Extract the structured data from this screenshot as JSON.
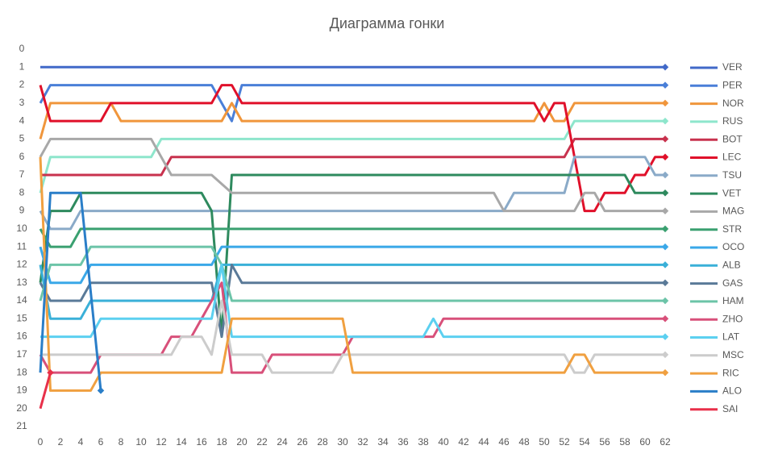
{
  "chart_data": {
    "type": "line",
    "title": "Диаграмма гонки",
    "xlim": [
      -1,
      63.2
    ],
    "ylim": [
      21,
      0
    ],
    "xticks": [
      0,
      2,
      4,
      6,
      8,
      10,
      12,
      14,
      16,
      18,
      20,
      22,
      24,
      26,
      28,
      30,
      32,
      34,
      36,
      38,
      40,
      42,
      44,
      46,
      48,
      50,
      52,
      54,
      56,
      58,
      60,
      62
    ],
    "yticks": [
      0,
      1,
      2,
      3,
      4,
      5,
      6,
      7,
      8,
      9,
      10,
      11,
      12,
      13,
      14,
      15,
      16,
      17,
      18,
      19,
      20,
      21
    ],
    "series": [
      {
        "name": "VER",
        "color": "#4169c8",
        "x": [
          0,
          62
        ],
        "values": [
          1,
          1
        ]
      },
      {
        "name": "PER",
        "color": "#4a7fd8",
        "x": [
          0,
          1,
          17,
          18,
          19,
          20,
          62
        ],
        "values": [
          3,
          2,
          2,
          3,
          4,
          2,
          2
        ]
      },
      {
        "name": "NOR",
        "color": "#f0963c",
        "x": [
          0,
          1,
          7,
          8,
          18,
          19,
          20,
          49,
          50,
          51,
          52,
          53,
          62
        ],
        "values": [
          5,
          3,
          3,
          4,
          4,
          3,
          4,
          4,
          3,
          4,
          4,
          3,
          3
        ]
      },
      {
        "name": "RUS",
        "color": "#8ee6cc",
        "x": [
          0,
          1,
          11,
          12,
          52,
          53,
          62
        ],
        "values": [
          8,
          6,
          6,
          5,
          5,
          4,
          4
        ]
      },
      {
        "name": "BOT",
        "color": "#c8324e",
        "x": [
          0,
          1,
          12,
          13,
          52,
          53,
          62
        ],
        "values": [
          7,
          7,
          7,
          6,
          6,
          5,
          5
        ]
      },
      {
        "name": "LEC",
        "color": "#e0102a",
        "x": [
          0,
          1,
          6,
          7,
          17,
          18,
          19,
          20,
          49,
          50,
          51,
          52,
          54,
          55,
          56,
          58,
          59,
          60,
          61,
          62
        ],
        "values": [
          2,
          4,
          4,
          3,
          3,
          2,
          2,
          3,
          3,
          4,
          3,
          3,
          9,
          9,
          8,
          8,
          7,
          7,
          6,
          6
        ]
      },
      {
        "name": "TSU",
        "color": "#8aaac8",
        "x": [
          0,
          1,
          3,
          4,
          46,
          47,
          52,
          53,
          60,
          61,
          62
        ],
        "values": [
          9,
          10,
          10,
          9,
          9,
          8,
          8,
          6,
          6,
          7,
          7
        ]
      },
      {
        "name": "VET",
        "color": "#2e8a5e",
        "x": [
          0,
          1,
          3,
          4,
          16,
          17,
          18,
          19,
          58,
          59,
          62
        ],
        "values": [
          13,
          9,
          9,
          8,
          8,
          9,
          16,
          7,
          7,
          8,
          8
        ]
      },
      {
        "name": "MAG",
        "color": "#a8a8a8",
        "x": [
          0,
          1,
          11,
          13,
          17,
          19,
          45,
          46,
          53,
          54,
          55,
          56,
          62
        ],
        "values": [
          6,
          5,
          5,
          7,
          7,
          8,
          8,
          9,
          9,
          8,
          8,
          9,
          9
        ]
      },
      {
        "name": "STR",
        "color": "#3aa070",
        "x": [
          0,
          1,
          3,
          4,
          62
        ],
        "values": [
          10,
          11,
          11,
          10,
          10
        ]
      },
      {
        "name": "OCO",
        "color": "#3aa8e8",
        "x": [
          0,
          1,
          4,
          5,
          17,
          18,
          62
        ],
        "values": [
          11,
          13,
          13,
          12,
          12,
          11,
          11
        ]
      },
      {
        "name": "ALB",
        "color": "#3ab0d8",
        "x": [
          0,
          1,
          4,
          5,
          17,
          18,
          62
        ],
        "values": [
          12,
          15,
          15,
          14,
          14,
          12,
          12
        ]
      },
      {
        "name": "GAS",
        "color": "#5a7a98",
        "x": [
          0,
          1,
          4,
          5,
          17,
          18,
          19,
          20,
          62
        ],
        "values": [
          13,
          14,
          14,
          13,
          13,
          16,
          12,
          13,
          13
        ]
      },
      {
        "name": "HAM",
        "color": "#6cc4a8",
        "x": [
          0,
          1,
          4,
          5,
          17,
          18,
          19,
          62
        ],
        "values": [
          14,
          12,
          12,
          11,
          11,
          12,
          14,
          14
        ]
      },
      {
        "name": "ZHO",
        "color": "#d8507a",
        "x": [
          0,
          1,
          5,
          6,
          12,
          13,
          15,
          17,
          18,
          19,
          22,
          23,
          30,
          31,
          39,
          40,
          62
        ],
        "values": [
          17,
          18,
          18,
          17,
          17,
          16,
          16,
          14,
          13,
          18,
          18,
          17,
          17,
          16,
          16,
          15,
          15
        ]
      },
      {
        "name": "LAT",
        "color": "#5cd0f0",
        "x": [
          0,
          1,
          5,
          6,
          17,
          18,
          19,
          38,
          39,
          40,
          62
        ],
        "values": [
          16,
          16,
          16,
          15,
          15,
          12,
          16,
          16,
          15,
          16,
          16
        ]
      },
      {
        "name": "MSC",
        "color": "#cccccc",
        "x": [
          0,
          1,
          13,
          14,
          16,
          17,
          18,
          19,
          22,
          23,
          29,
          30,
          52,
          53,
          54,
          55,
          62
        ],
        "values": [
          17,
          17,
          17,
          16,
          16,
          17,
          14,
          17,
          17,
          18,
          18,
          17,
          17,
          18,
          18,
          17,
          17
        ]
      },
      {
        "name": "RIC",
        "color": "#f0a040",
        "x": [
          0,
          1,
          5,
          6,
          18,
          19,
          30,
          31,
          52,
          53,
          54,
          55,
          62
        ],
        "values": [
          6,
          19,
          19,
          18,
          18,
          15,
          15,
          18,
          18,
          17,
          17,
          18,
          18
        ]
      },
      {
        "name": "ALO",
        "color": "#2a7ec8",
        "x": [
          0,
          1,
          4,
          6
        ],
        "values": [
          18,
          8,
          8,
          19
        ]
      },
      {
        "name": "SAI",
        "color": "#e8304a",
        "x": [
          0,
          1
        ],
        "values": [
          20,
          18
        ]
      }
    ]
  }
}
